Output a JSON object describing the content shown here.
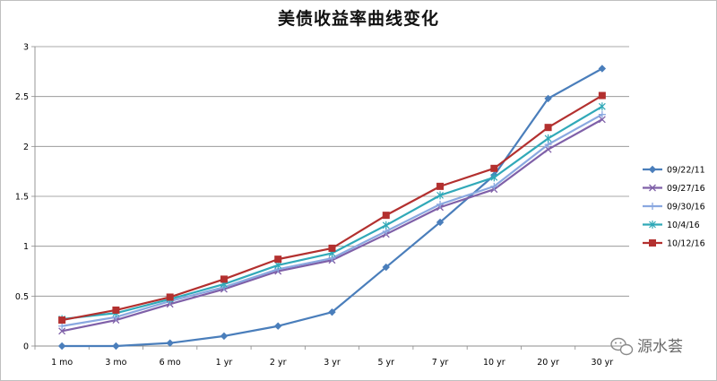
{
  "chart_data": {
    "type": "line",
    "title": "美债收益率曲线变化",
    "xlabel": "",
    "ylabel": "",
    "categories": [
      "1 mo",
      "3 mo",
      "6 mo",
      "1 yr",
      "2 yr",
      "3 yr",
      "5 yr",
      "7 yr",
      "10 yr",
      "20 yr",
      "30 yr"
    ],
    "ylim": [
      0,
      3
    ],
    "yticks": [
      "0",
      "0.5",
      "1",
      "1.5",
      "2",
      "2.5",
      "3"
    ],
    "grid": true,
    "legend": "right",
    "series": [
      {
        "name": "09/22/11",
        "color": "#4a7ebb",
        "marker": "diamond",
        "values": [
          0.0,
          0.0,
          0.03,
          0.1,
          0.2,
          0.34,
          0.79,
          1.24,
          1.71,
          2.48,
          2.78
        ]
      },
      {
        "name": "09/27/16",
        "color": "#7f60a8",
        "marker": "x",
        "values": [
          0.15,
          0.26,
          0.42,
          0.57,
          0.75,
          0.86,
          1.12,
          1.39,
          1.57,
          1.97,
          2.27
        ]
      },
      {
        "name": "09/30/16",
        "color": "#8aa8e0",
        "marker": "plus",
        "values": [
          0.2,
          0.29,
          0.45,
          0.59,
          0.77,
          0.88,
          1.15,
          1.42,
          1.6,
          2.02,
          2.32
        ]
      },
      {
        "name": "10/4/16",
        "color": "#31a9b8",
        "marker": "star",
        "values": [
          0.27,
          0.33,
          0.47,
          0.62,
          0.81,
          0.93,
          1.21,
          1.51,
          1.69,
          2.08,
          2.4
        ]
      },
      {
        "name": "10/12/16",
        "color": "#b3302f",
        "marker": "square",
        "values": [
          0.26,
          0.36,
          0.49,
          0.67,
          0.87,
          0.98,
          1.31,
          1.6,
          1.78,
          2.19,
          2.51
        ]
      }
    ]
  },
  "watermark": {
    "text": "源水荟",
    "icon": "wechat-icon"
  }
}
